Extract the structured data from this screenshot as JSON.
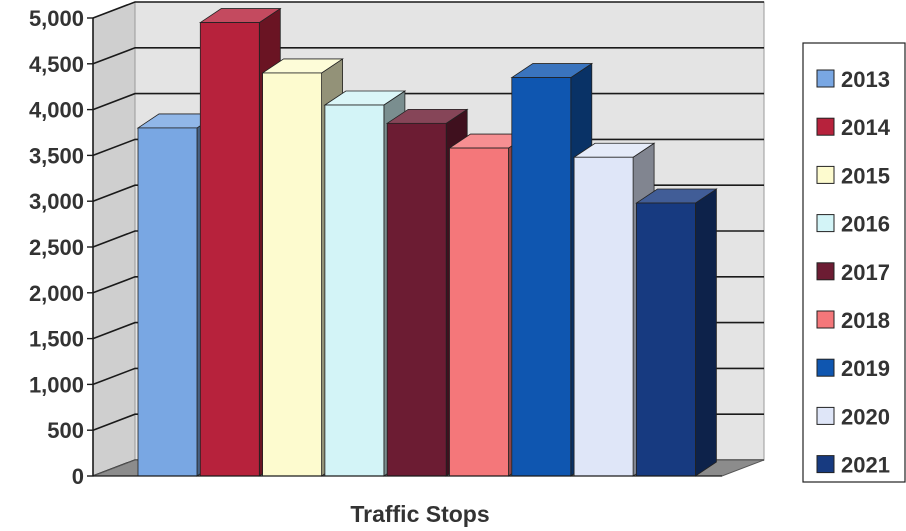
{
  "chart_data": {
    "type": "bar",
    "style": "3d-clustered-column",
    "xlabel": "Traffic Stops",
    "ylim": [
      0,
      5000
    ],
    "yticks": [
      0,
      500,
      1000,
      1500,
      2000,
      2500,
      3000,
      3500,
      4000,
      4500,
      5000
    ],
    "ytick_labels": [
      "0",
      "500",
      "1,000",
      "1,500",
      "2,000",
      "2,500",
      "3,000",
      "3,500",
      "4,000",
      "4,500",
      "5,000"
    ],
    "grid": true,
    "legend_position": "right",
    "series": [
      {
        "name": "2013",
        "value": 3800,
        "color": "#79a7e3"
      },
      {
        "name": "2014",
        "value": 4950,
        "color": "#b7223c"
      },
      {
        "name": "2015",
        "value": 4400,
        "color": "#fdfbcf"
      },
      {
        "name": "2016",
        "value": 4050,
        "color": "#d3f4f7"
      },
      {
        "name": "2017",
        "value": 3850,
        "color": "#6c1c33"
      },
      {
        "name": "2018",
        "value": 3580,
        "color": "#f4777a"
      },
      {
        "name": "2019",
        "value": 4350,
        "color": "#0f56b0"
      },
      {
        "name": "2020",
        "value": 3480,
        "color": "#dfe6f8"
      },
      {
        "name": "2021",
        "value": 2980,
        "color": "#173a80"
      }
    ]
  }
}
